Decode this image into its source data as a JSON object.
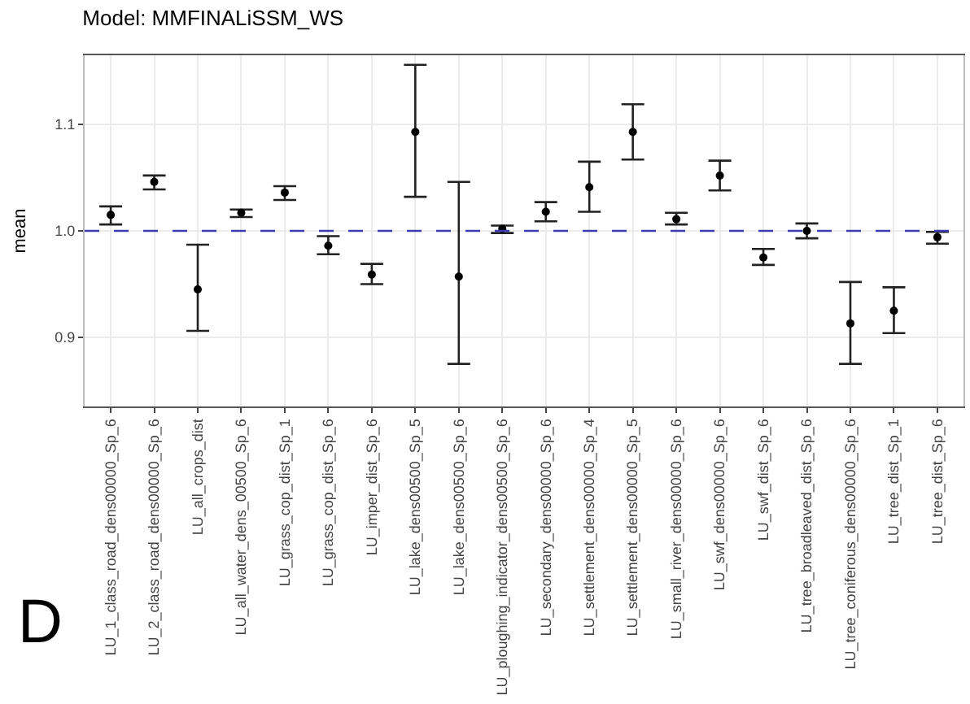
{
  "chart_data": {
    "type": "scatter",
    "title": "Model: MMFINALiSSM_WS",
    "ylabel": "mean",
    "categories": [
      "LU_1_class_road_dens00000_Sp_6",
      "LU_2_class_road_dens00000_Sp_6",
      "LU_all_crops_dist",
      "LU_all_water_dens_00500_Sp_6",
      "LU_grass_cop_dist_Sp_1",
      "LU_grass_cop_dist_Sp_6",
      "LU_imper_dist_Sp_6",
      "LU_lake_dens00500_Sp_5",
      "LU_lake_dens00500_Sp_6",
      "LU_ploughing_indicator_dens00500_Sp_6",
      "LU_secondary_dens00000_Sp_6",
      "LU_settlement_dens00000_Sp_4",
      "LU_settlement_dens00000_Sp_5",
      "LU_small_river_dens00000_Sp_6",
      "LU_swf_dens00000_Sp_6",
      "LU_swf_dist_Sp_6",
      "LU_tree_broadleaved_dist_Sp_6",
      "LU_tree_coniferous_dens00000_Sp_6",
      "LU_tree_dist_Sp_1",
      "LU_tree_dist_Sp_6"
    ],
    "series": [
      {
        "color": "#000000",
        "values": [
          1.015,
          1.046,
          0.945,
          1.017,
          1.036,
          0.986,
          0.959,
          1.093,
          0.957,
          1.002,
          1.018,
          1.041,
          1.093,
          1.011,
          1.052,
          0.975,
          1.0,
          0.913,
          0.925,
          0.994
        ],
        "errors": [
          [
            1.006,
            1.023
          ],
          [
            1.039,
            1.052
          ],
          [
            0.906,
            0.987
          ],
          [
            1.013,
            1.02
          ],
          [
            1.029,
            1.042
          ],
          [
            0.978,
            0.995
          ],
          [
            0.95,
            0.969
          ],
          [
            1.032,
            1.156
          ],
          [
            0.875,
            1.046
          ],
          [
            0.998,
            1.005
          ],
          [
            1.009,
            1.027
          ],
          [
            1.018,
            1.065
          ],
          [
            1.067,
            1.119
          ],
          [
            1.006,
            1.017
          ],
          [
            1.038,
            1.066
          ],
          [
            0.968,
            0.983
          ],
          [
            0.993,
            1.007
          ],
          [
            0.875,
            0.952
          ],
          [
            0.904,
            0.947
          ],
          [
            0.988,
            0.999
          ]
        ]
      }
    ],
    "ylim": [
      0.835,
      1.165
    ],
    "yticks": [
      0.9,
      {
        "value": 1,
        "label": "1.0"
      },
      1.1
    ],
    "grid": true,
    "marker": "circle",
    "ref_lines": [
      {
        "axis": "y",
        "value": 1.0,
        "color": "#3b3bb3",
        "line_style": "dashed"
      }
    ],
    "annotations": [
      "D"
    ]
  }
}
